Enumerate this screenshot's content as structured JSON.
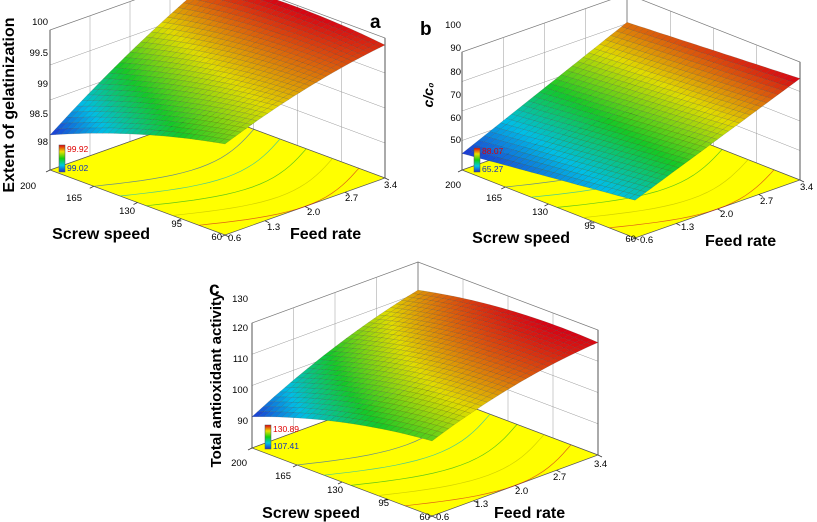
{
  "panels": [
    {
      "letter": "a",
      "zlabel": "Extent of gelatinization",
      "xlabel": "Screw speed",
      "ylabel": "Feed rate",
      "zticks": [
        "98",
        "98.5",
        "99",
        "99.5",
        "100"
      ],
      "xticks": [
        "200",
        "165",
        "130",
        "95",
        "60"
      ],
      "yticks": [
        "0.6",
        "1.3",
        "2.0",
        "2.7",
        "3.4"
      ],
      "legend_high": "99.92",
      "legend_low": "99.02"
    },
    {
      "letter": "b",
      "zlabel": "c/c₀",
      "xlabel": "Screw speed",
      "ylabel": "Feed rate",
      "zticks": [
        "50",
        "60",
        "70",
        "80",
        "90",
        "100"
      ],
      "xticks": [
        "200",
        "165",
        "130",
        "95",
        "60"
      ],
      "yticks": [
        "0.6",
        "1.3",
        "2.0",
        "2.7",
        "3.4"
      ],
      "legend_high": "88.07",
      "legend_low": "65.27"
    },
    {
      "letter": "c",
      "zlabel": "Total antioxidant activity",
      "xlabel": "Screw speed",
      "ylabel": "Feed rate",
      "zticks": [
        "90",
        "100",
        "110",
        "120",
        "130"
      ],
      "xticks": [
        "200",
        "165",
        "130",
        "95",
        "60"
      ],
      "yticks": [
        "0.6",
        "1.3",
        "2.0",
        "2.7",
        "3.4"
      ],
      "legend_high": "130.89",
      "legend_low": "107.41"
    }
  ],
  "chart_data": [
    {
      "type": "surface",
      "x_name": "Screw speed",
      "x_range": [
        60,
        200
      ],
      "y_name": "Feed rate",
      "y_range": [
        0.6,
        3.4
      ],
      "z_name": "Extent of gelatinization",
      "zlim": [
        98,
        100
      ],
      "design_min": 99.02,
      "design_max": 99.92,
      "corners": {
        "x200_y0.6": 98.5,
        "x60_y0.6": 99.3,
        "x200_y3.4": 99.9,
        "x60_y3.4": 99.9
      },
      "curvature": 0.5,
      "floor_color": "#ffff00"
    },
    {
      "type": "surface",
      "x_name": "Screw speed",
      "x_range": [
        60,
        200
      ],
      "y_name": "Feed rate",
      "y_range": [
        0.6,
        3.4
      ],
      "z_name": "c/c₀",
      "zlim": [
        50,
        100
      ],
      "design_min": 65.27,
      "design_max": 88.07,
      "corners": {
        "x200_y0.6": 57,
        "x60_y0.6": 66,
        "x200_y3.4": 88,
        "x60_y3.4": 93
      },
      "curvature": 0,
      "floor_color": "#ffff00"
    },
    {
      "type": "surface",
      "x_name": "Screw speed",
      "x_range": [
        60,
        200
      ],
      "y_name": "Feed rate",
      "y_range": [
        0.6,
        3.4
      ],
      "z_name": "Total antioxidant activity",
      "zlim": [
        90,
        130
      ],
      "design_min": 107.41,
      "design_max": 130.89,
      "corners": {
        "x200_y0.6": 100,
        "x60_y0.6": 114,
        "x200_y3.4": 121,
        "x60_y3.4": 126
      },
      "curvature": 14,
      "floor_color": "#ffff00"
    }
  ]
}
